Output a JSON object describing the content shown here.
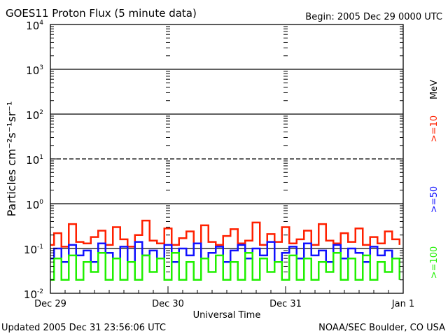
{
  "chart_data": {
    "type": "line",
    "title": "GOES11 Proton Flux (5 minute data)",
    "begin_label": "Begin: 2005 Dec 29 0000 UTC",
    "xlabel": "Universal Time",
    "ylabel": "Particles cm⁻²s⁻¹sr⁻¹",
    "yscale": "log",
    "ylim": [
      0.01,
      10000
    ],
    "y_ticks": [
      {
        "base": "10",
        "exp": "4",
        "value": 10000
      },
      {
        "base": "10",
        "exp": "3",
        "value": 1000
      },
      {
        "base": "10",
        "exp": "2",
        "value": 100
      },
      {
        "base": "10",
        "exp": "1",
        "value": 10
      },
      {
        "base": "10",
        "exp": "0",
        "value": 1
      },
      {
        "base": "10",
        "exp": "-1",
        "value": 0.1
      },
      {
        "base": "10",
        "exp": "-2",
        "value": 0.01
      }
    ],
    "xlim_hours": [
      0,
      72
    ],
    "x_ticks": [
      {
        "label": "Dec 29",
        "hour": 0
      },
      {
        "label": "Dec 30",
        "hour": 24
      },
      {
        "label": "Dec 31",
        "hour": 48
      },
      {
        "label": "Jan 1",
        "hour": 72
      }
    ],
    "unit_label": "MeV",
    "series": [
      {
        "name": ">=10",
        "color": "#ff2000",
        "values": [
          0.12,
          0.22,
          0.11,
          0.35,
          0.14,
          0.13,
          0.18,
          0.25,
          0.12,
          0.3,
          0.16,
          0.11,
          0.2,
          0.42,
          0.15,
          0.13,
          0.28,
          0.12,
          0.17,
          0.24,
          0.13,
          0.33,
          0.14,
          0.12,
          0.19,
          0.27,
          0.13,
          0.15,
          0.38,
          0.12,
          0.21,
          0.14,
          0.3,
          0.13,
          0.16,
          0.25,
          0.12,
          0.35,
          0.15,
          0.13,
          0.22,
          0.14,
          0.28,
          0.12,
          0.18,
          0.13,
          0.24,
          0.16
        ]
      },
      {
        "name": ">=50",
        "color": "#1010ff",
        "values": [
          0.06,
          0.1,
          0.05,
          0.12,
          0.07,
          0.09,
          0.05,
          0.13,
          0.08,
          0.06,
          0.11,
          0.05,
          0.14,
          0.07,
          0.09,
          0.06,
          0.12,
          0.05,
          0.1,
          0.07,
          0.13,
          0.06,
          0.08,
          0.11,
          0.05,
          0.09,
          0.12,
          0.06,
          0.1,
          0.07,
          0.14,
          0.05,
          0.08,
          0.11,
          0.06,
          0.13,
          0.07,
          0.09,
          0.05,
          0.12,
          0.06,
          0.1,
          0.08,
          0.05,
          0.11,
          0.07,
          0.09,
          0.06
        ]
      },
      {
        "name": ">=100",
        "color": "#20f000",
        "values": [
          0.02,
          0.06,
          0.02,
          0.07,
          0.02,
          0.05,
          0.03,
          0.08,
          0.02,
          0.06,
          0.02,
          0.05,
          0.02,
          0.07,
          0.03,
          0.06,
          0.02,
          0.08,
          0.02,
          0.05,
          0.02,
          0.06,
          0.03,
          0.07,
          0.02,
          0.05,
          0.02,
          0.08,
          0.02,
          0.06,
          0.03,
          0.05,
          0.02,
          0.07,
          0.02,
          0.06,
          0.02,
          0.05,
          0.03,
          0.08,
          0.02,
          0.06,
          0.02,
          0.07,
          0.02,
          0.05,
          0.03,
          0.06
        ]
      }
    ]
  },
  "footer": {
    "updated": "Updated 2005 Dec 31 23:56:06 UTC",
    "source": "NOAA/SEC Boulder, CO USA"
  }
}
